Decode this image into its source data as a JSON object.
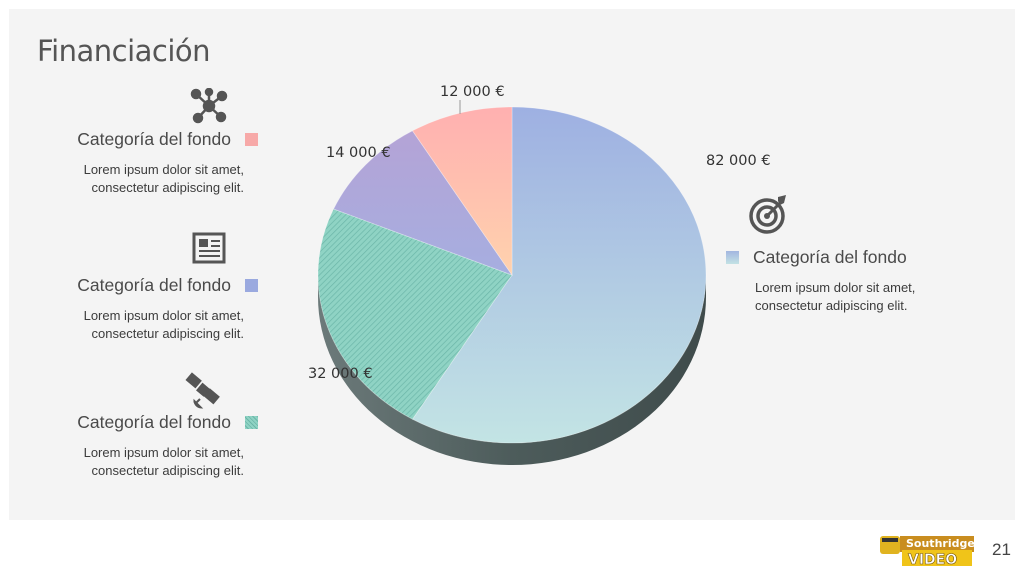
{
  "slide": {
    "title": "Financiación",
    "page_number": "21",
    "logo_text": "Southridge VIDEO"
  },
  "legend_left": [
    {
      "icon": "network-icon",
      "label": "Categoría del fondo",
      "desc_line1": "Lorem ipsum dolor sit amet,",
      "desc_line2": "consectetur adipiscing elit.",
      "swatch_color": "#f7a9a8"
    },
    {
      "icon": "newspaper-icon",
      "label": "Categoría del fondo",
      "desc_line1": "Lorem ipsum dolor sit amet,",
      "desc_line2": "consectetur adipiscing elit.",
      "swatch_color": "#9aa9df"
    },
    {
      "icon": "satellite-icon",
      "label": "Categoría del fondo",
      "desc_line1": "Lorem ipsum dolor sit amet,",
      "desc_line2": "consectetur adipiscing elit.",
      "swatch_color": "#8fd3c4"
    }
  ],
  "legend_right": {
    "icon": "target-icon",
    "label": "Categoría del fondo",
    "desc_line1": "Lorem ipsum dolor sit amet,",
    "desc_line2": "consectetur adipiscing elit.",
    "swatch_color": "#a9c1df"
  },
  "chart_data": {
    "type": "pie",
    "three_d": true,
    "start_angle_deg": 0,
    "direction": "clockwise",
    "slices": [
      {
        "label": "82 000 €",
        "value": 82000,
        "fill": "gradient-blue-teal"
      },
      {
        "label": "32 000 €",
        "value": 32000,
        "fill": "hatched-teal"
      },
      {
        "label": "14 000 €",
        "value": 14000,
        "fill": "gradient-lilac"
      },
      {
        "label": "12 000 €",
        "value": 12000,
        "fill": "gradient-pink-peach"
      }
    ],
    "colors": {
      "blue_top": "#9eb0e2",
      "blue_bottom": "#c3e4e4",
      "teal": "#8fd3c4",
      "teal_hatch": "#6bb6a8",
      "lilac_top": "#b4a3d6",
      "lilac_bottom": "#a6aee0",
      "pink_top": "#ffb0b0",
      "pink_bottom": "#ffd2ae",
      "side": "#4d5c5b"
    }
  }
}
